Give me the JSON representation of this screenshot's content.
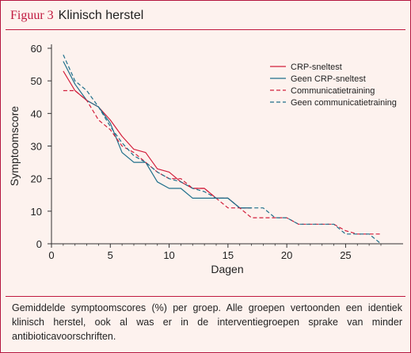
{
  "figure": {
    "label": "Figuur 3",
    "title": "Klinisch herstel",
    "caption": "Gemiddelde symptoomscores (%) per groep. Alle groepen vertoonden een identiek klinisch herstel, ook al was er in de interventiegroepen sprake van minder antibioticavoorschriften."
  },
  "chart_data": {
    "type": "line",
    "title": "Klinisch herstel",
    "xlabel": "Dagen",
    "ylabel": "Symptoomscore",
    "xlim": [
      0,
      28
    ],
    "ylim": [
      0,
      60
    ],
    "xticks": [
      0,
      5,
      10,
      15,
      20,
      25
    ],
    "yticks": [
      0,
      10,
      20,
      30,
      40,
      50,
      60
    ],
    "legend_position": "top-right",
    "grid": false,
    "series": [
      {
        "name": "CRP-sneltest",
        "color": "#d21f3c",
        "style": "solid",
        "points": [
          [
            1,
            53
          ],
          [
            2,
            47
          ],
          [
            3,
            44
          ],
          [
            4,
            42
          ],
          [
            5,
            38
          ],
          [
            6,
            33
          ],
          [
            7,
            29
          ],
          [
            8,
            28
          ],
          [
            9,
            23
          ],
          [
            10,
            22
          ],
          [
            11,
            19
          ],
          [
            12,
            17
          ],
          [
            13,
            17
          ],
          [
            14,
            14
          ],
          [
            15,
            14
          ],
          [
            16,
            11
          ],
          [
            17,
            11
          ]
        ]
      },
      {
        "name": "Geen CRP-sneltest",
        "color": "#1f6f8b",
        "style": "solid",
        "points": [
          [
            1,
            56
          ],
          [
            2,
            49
          ],
          [
            3,
            44
          ],
          [
            4,
            42
          ],
          [
            5,
            37
          ],
          [
            6,
            28
          ],
          [
            7,
            25
          ],
          [
            8,
            25
          ],
          [
            9,
            19
          ],
          [
            10,
            17
          ],
          [
            11,
            17
          ],
          [
            12,
            14
          ],
          [
            13,
            14
          ],
          [
            14,
            14
          ],
          [
            15,
            14
          ],
          [
            16,
            11
          ],
          [
            17,
            11
          ]
        ]
      },
      {
        "name": "Communicatietraining",
        "color": "#d21f3c",
        "style": "dashed",
        "points": [
          [
            1,
            47
          ],
          [
            2,
            47
          ],
          [
            3,
            44
          ],
          [
            4,
            38
          ],
          [
            5,
            35
          ],
          [
            6,
            30
          ],
          [
            7,
            28
          ],
          [
            8,
            25
          ],
          [
            9,
            22
          ],
          [
            10,
            20
          ],
          [
            11,
            20
          ],
          [
            12,
            17
          ],
          [
            13,
            17
          ],
          [
            14,
            14
          ],
          [
            15,
            11
          ],
          [
            16,
            11
          ],
          [
            17,
            8
          ],
          [
            18,
            8
          ],
          [
            19,
            8
          ],
          [
            20,
            8
          ],
          [
            21,
            6
          ],
          [
            22,
            6
          ],
          [
            23,
            6
          ],
          [
            24,
            6
          ],
          [
            25,
            4
          ],
          [
            26,
            3
          ],
          [
            27,
            3
          ],
          [
            28,
            3
          ]
        ]
      },
      {
        "name": "Geen communicatietraining",
        "color": "#1f6f8b",
        "style": "dashed",
        "points": [
          [
            1,
            58
          ],
          [
            2,
            50
          ],
          [
            3,
            47
          ],
          [
            4,
            42
          ],
          [
            5,
            36
          ],
          [
            6,
            31
          ],
          [
            7,
            27
          ],
          [
            8,
            25
          ],
          [
            9,
            22
          ],
          [
            10,
            20
          ],
          [
            11,
            19
          ],
          [
            12,
            17
          ],
          [
            13,
            16
          ],
          [
            14,
            14
          ],
          [
            15,
            14
          ],
          [
            16,
            11
          ],
          [
            17,
            11
          ],
          [
            18,
            11
          ],
          [
            19,
            8
          ],
          [
            20,
            8
          ],
          [
            21,
            6
          ],
          [
            22,
            6
          ],
          [
            23,
            6
          ],
          [
            24,
            6
          ],
          [
            25,
            3
          ],
          [
            26,
            3
          ],
          [
            27,
            3
          ],
          [
            28,
            0
          ]
        ]
      }
    ]
  }
}
